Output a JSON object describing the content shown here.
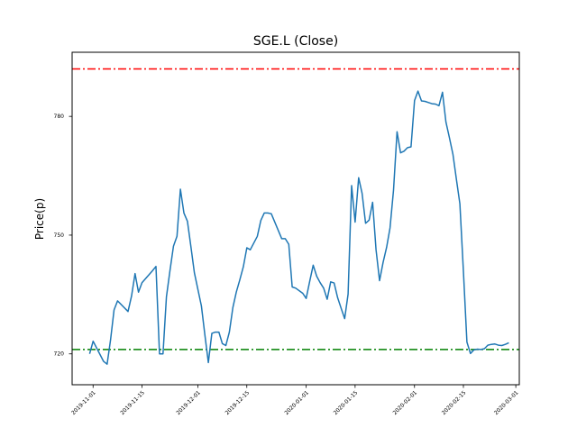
{
  "chart_data": {
    "type": "line",
    "title": "SGE.L (Close)",
    "xlabel": "",
    "ylabel": "Price(p)",
    "x_ticks": [
      {
        "label": "2019-11-01",
        "day": 0
      },
      {
        "label": "2019-11-15",
        "day": 14
      },
      {
        "label": "2019-12-01",
        "day": 30
      },
      {
        "label": "2019-12-15",
        "day": 44
      },
      {
        "label": "2020-01-01",
        "day": 61
      },
      {
        "label": "2020-01-15",
        "day": 75
      },
      {
        "label": "2020-02-01",
        "day": 92
      },
      {
        "label": "2020-02-15",
        "day": 106
      },
      {
        "label": "2020-03-01",
        "day": 121
      }
    ],
    "y_ticks": [
      {
        "label": "720",
        "value": 720
      },
      {
        "label": "750",
        "value": 750
      },
      {
        "label": "780",
        "value": 780
      }
    ],
    "xlim": [
      -6,
      122
    ],
    "ylim": [
      712.2,
      796.2
    ],
    "series": [
      {
        "name": "Close",
        "color": "#1f77b4",
        "x": [
          -1,
          0,
          3,
          4,
          5,
          6,
          7,
          10,
          11,
          12,
          13,
          14,
          17,
          18,
          19,
          20,
          21,
          22,
          23,
          24,
          25,
          26,
          27,
          28,
          29,
          31,
          32,
          33,
          34,
          35,
          36,
          37,
          38,
          39,
          40,
          41,
          42,
          43,
          44,
          45,
          47,
          48,
          49,
          50,
          51,
          54,
          55,
          56,
          57,
          58,
          60,
          61,
          62,
          63,
          64,
          65,
          66,
          67,
          68,
          69,
          70,
          71,
          72,
          73,
          74,
          75,
          76,
          77,
          78,
          79,
          80,
          81,
          82,
          83,
          84,
          85,
          86,
          87,
          88,
          89,
          90,
          91,
          92,
          93,
          94,
          95,
          96,
          97,
          98,
          99,
          100,
          101,
          102,
          103,
          104,
          105,
          106,
          107,
          108,
          109,
          110,
          111,
          112,
          113,
          114,
          115,
          116,
          117,
          118,
          119
        ],
        "y": [
          720.0,
          723.2,
          718.1,
          717.4,
          723.5,
          731.1,
          733.4,
          730.7,
          734.6,
          740.3,
          735.6,
          738.0,
          741.0,
          742.1,
          720.0,
          720.0,
          734.4,
          741.0,
          747.2,
          749.7,
          761.6,
          755.6,
          753.5,
          747.0,
          740.5,
          732.1,
          724.7,
          717.8,
          725.2,
          725.5,
          725.5,
          722.6,
          722.1,
          725.5,
          731.7,
          735.6,
          738.7,
          742.0,
          746.8,
          746.3,
          749.7,
          753.7,
          755.6,
          755.6,
          755.4,
          749.1,
          749.1,
          747.7,
          736.9,
          736.6,
          735.3,
          734.0,
          738.3,
          742.4,
          739.6,
          738.0,
          736.6,
          733.8,
          738.2,
          737.9,
          734.2,
          731.5,
          728.9,
          735.1,
          762.5,
          753.3,
          764.5,
          760.6,
          753.0,
          753.8,
          758.3,
          746.3,
          738.5,
          743.1,
          746.9,
          751.8,
          761.4,
          776.1,
          770.8,
          771.2,
          772.1,
          772.3,
          784.0,
          786.4,
          783.9,
          783.8,
          783.5,
          783.2,
          783.1,
          782.7,
          786.1,
          778.6,
          774.6,
          770.4,
          764.0,
          757.9,
          740.9,
          723.0,
          720.1,
          721.0,
          721.2,
          721.1,
          721.3,
          722.2,
          722.4,
          722.5,
          722.2,
          722.1,
          722.4,
          722.8
        ]
      }
    ],
    "hlines": [
      {
        "name": "upper",
        "value": 792.0,
        "color": "#ff0000",
        "style": "dashdot"
      },
      {
        "name": "lower",
        "value": 721.1,
        "color": "#008000",
        "style": "dashdot"
      }
    ],
    "grid": false
  }
}
